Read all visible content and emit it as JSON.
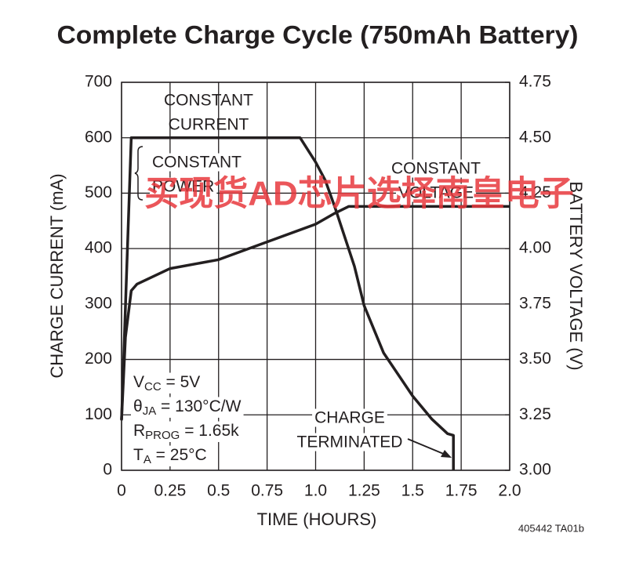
{
  "chart_data": {
    "type": "line",
    "title": "Complete Charge Cycle (750mAh Battery)",
    "xlabel": "TIME (HOURS)",
    "ylabel": "CHARGE CURRENT (mA)",
    "y2label": "BATTERY VOLTAGE (V)",
    "xlim": [
      0,
      2
    ],
    "xticks": [
      0,
      0.25,
      0.5,
      0.75,
      {
        "value": 1,
        "label": "1.0"
      },
      1.25,
      1.5,
      1.75,
      {
        "value": 2,
        "label": "2.0"
      }
    ],
    "ylim": [
      0,
      700
    ],
    "yticks": [
      0,
      100,
      200,
      300,
      400,
      500,
      600,
      700
    ],
    "y2lim": [
      3,
      4.75
    ],
    "y2ticks": [
      {
        "value": 3,
        "label": "3.00"
      },
      3.25,
      {
        "value": 3.5,
        "label": "3.50"
      },
      3.75,
      {
        "value": 4,
        "label": "4.00"
      },
      4.25,
      {
        "value": 4.5,
        "label": "4.50"
      },
      4.75
    ],
    "grid": true,
    "series": [
      {
        "color": "#231f20",
        "axis": "y",
        "x": [
          0,
          0.05,
          0.92,
          1.0,
          1.05,
          1.1,
          1.2,
          1.25,
          1.35,
          1.5,
          1.6,
          1.68,
          1.71,
          1.71
        ],
        "values": [
          90,
          600,
          600,
          556,
          523,
          474,
          368,
          297,
          212,
          134,
          92,
          66,
          63,
          0
        ]
      },
      {
        "color": "#231f20",
        "axis": "y2",
        "x": [
          0,
          0.02,
          0.05,
          0.08,
          0.25,
          0.5,
          0.75,
          1.0,
          1.1,
          1.17,
          2.0
        ],
        "values": [
          3.23,
          3.6,
          3.81,
          3.84,
          3.91,
          3.95,
          4.03,
          4.11,
          4.16,
          4.19,
          4.19
        ]
      }
    ],
    "annotations": {
      "constant_current": [
        "CONSTANT",
        "CURRENT"
      ],
      "constant_power": [
        "CONSTANT",
        "POWER"
      ],
      "constant_voltage": [
        "CONSTANT",
        "VOLTAGE"
      ],
      "charge_terminated": [
        "CHARGE",
        "TERMINATED"
      ],
      "conditions": [
        [
          "V",
          "CC",
          " = 5V"
        ],
        [
          "θ",
          "JA",
          " = 130°C/W"
        ],
        [
          "R",
          "PROG",
          " = 1.65k"
        ],
        [
          "T",
          "A",
          " = 25°C"
        ]
      ]
    },
    "footnote": "405442 TA01b",
    "watermark": "买现货AD芯片选择南皇电子"
  }
}
